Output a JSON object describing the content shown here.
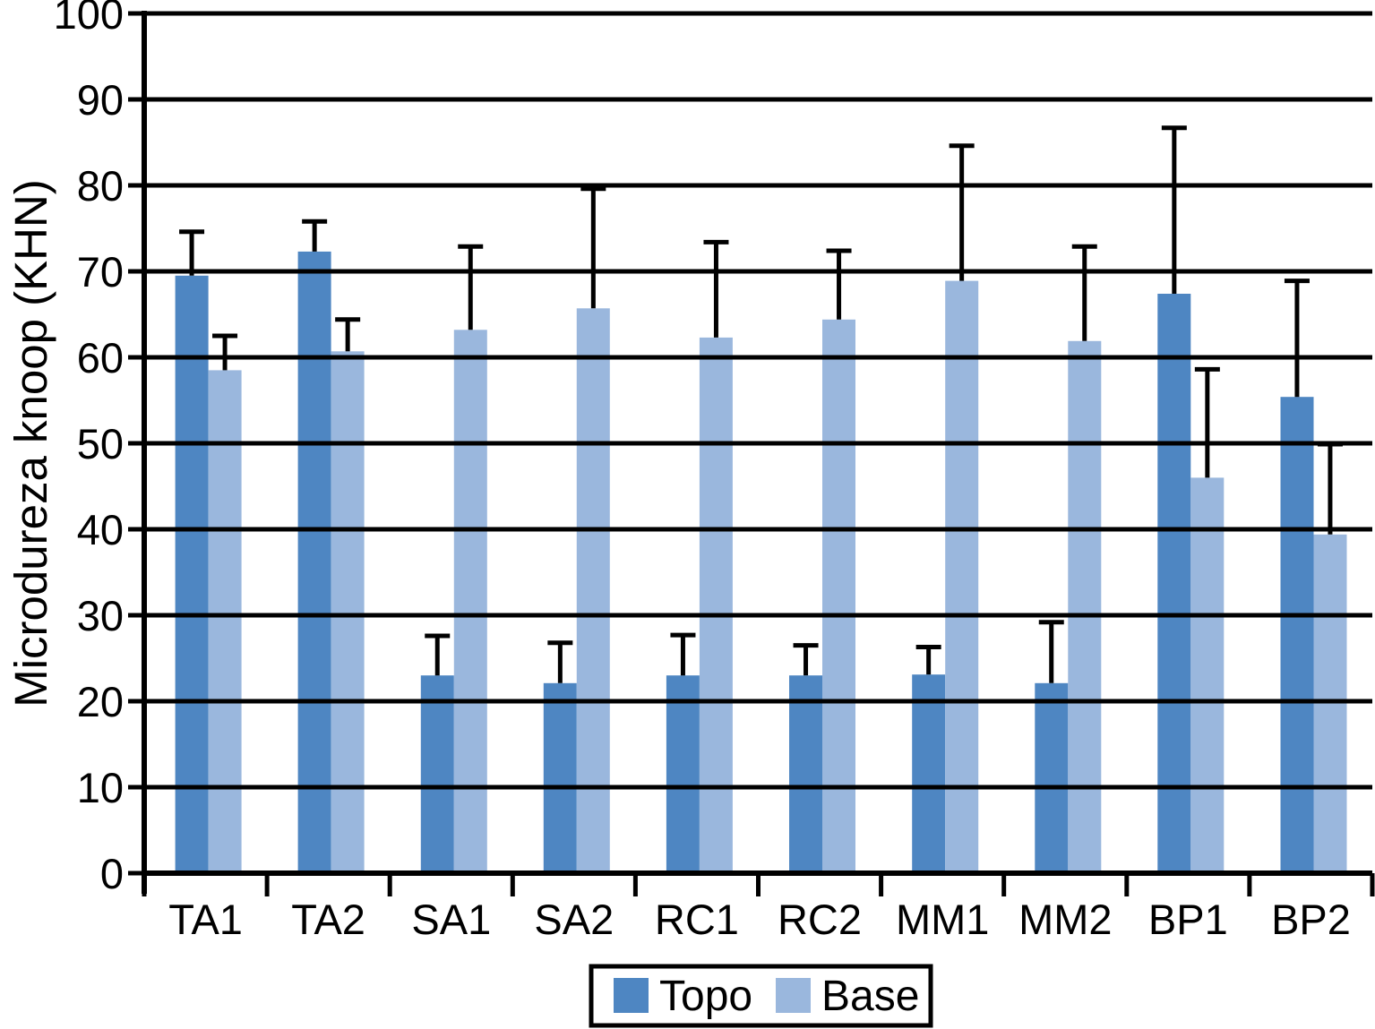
{
  "chart_data": {
    "type": "bar",
    "title": "",
    "xlabel": "",
    "ylabel": "Microdureza knoop (KHN)",
    "ylim": [
      0,
      100
    ],
    "ytick_step": 10,
    "ytick_labels": [
      "0",
      "10",
      "20",
      "30",
      "40",
      "50",
      "60",
      "70",
      "80",
      "90",
      "100"
    ],
    "grid": "horizontal",
    "grid_color": "#000000",
    "legend_position": "bottom",
    "categories": [
      "TA1",
      "TA2",
      "SA1",
      "SA2",
      "RC1",
      "RC2",
      "MM1",
      "MM2",
      "BP1",
      "BP2"
    ],
    "series": [
      {
        "name": "Topo",
        "color": "#4e86c2",
        "values": [
          69.5,
          72.3,
          23.0,
          22.1,
          23.0,
          23.0,
          23.1,
          22.1,
          67.4,
          55.4
        ],
        "errors_plus": [
          5.1,
          3.5,
          4.6,
          4.7,
          4.7,
          3.5,
          3.2,
          7.1,
          19.3,
          13.5
        ]
      },
      {
        "name": "Base",
        "color": "#9ab7dd",
        "values": [
          58.5,
          60.7,
          63.2,
          65.7,
          62.3,
          64.4,
          68.9,
          61.9,
          46.0,
          39.4
        ],
        "errors_plus": [
          4.0,
          3.7,
          9.7,
          13.9,
          11.1,
          8.0,
          15.7,
          11.0,
          12.6,
          10.5
        ]
      }
    ]
  }
}
